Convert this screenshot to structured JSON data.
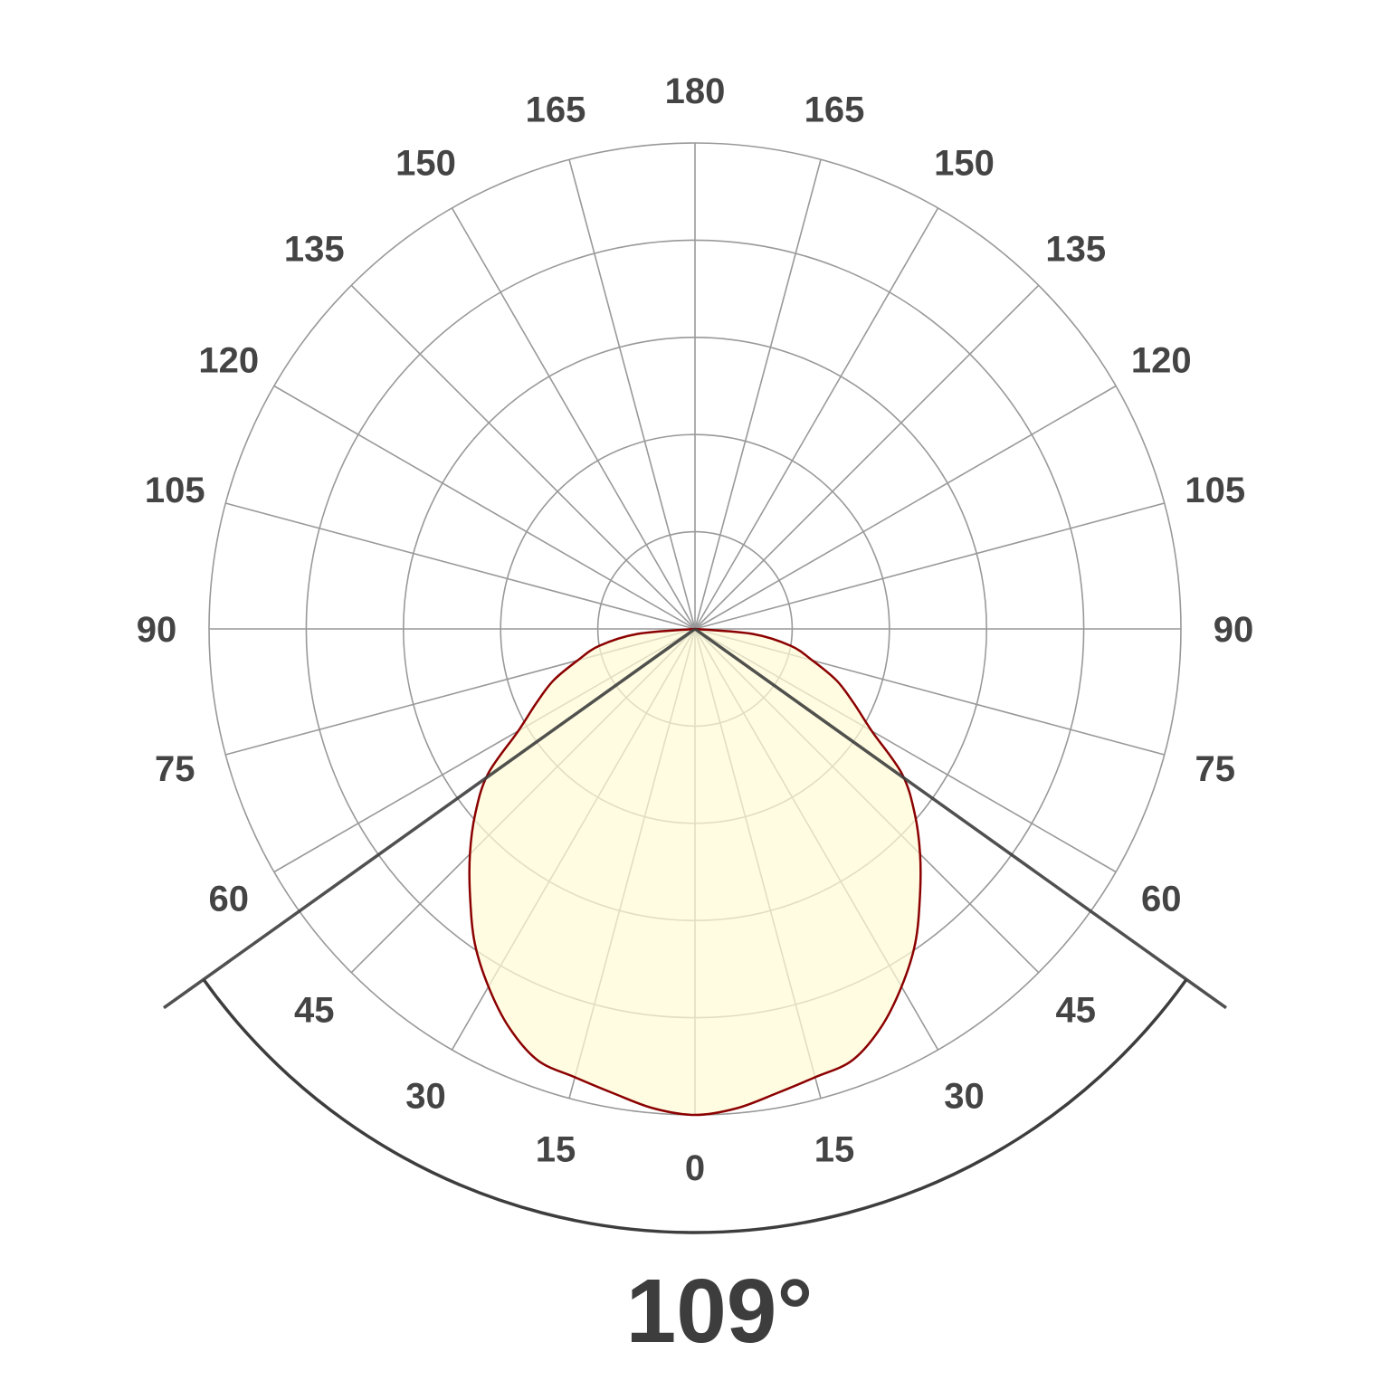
{
  "chart_data": {
    "type": "polar",
    "angle_tick_labels_left": [
      "0",
      "15",
      "30",
      "45",
      "60",
      "75",
      "90",
      "105",
      "120",
      "135",
      "150",
      "165",
      "180"
    ],
    "angle_tick_labels_right": [
      "15",
      "30",
      "45",
      "60",
      "75",
      "90",
      "105",
      "120",
      "135",
      "150",
      "165"
    ],
    "radial_rings": 5,
    "radial_tick_labels": [],
    "grid": true,
    "symmetric": true,
    "series": [
      {
        "angles_deg": [
          0,
          5,
          10,
          15,
          20,
          25,
          30,
          35,
          40,
          45,
          50,
          55,
          60,
          65,
          70,
          75,
          80,
          85,
          90
        ],
        "values_relative": [
          1.0,
          0.99,
          0.97,
          0.955,
          0.945,
          0.905,
          0.85,
          0.79,
          0.72,
          0.655,
          0.59,
          0.52,
          0.42,
          0.36,
          0.31,
          0.25,
          0.2,
          0.12,
          0.0
        ],
        "fill_color": "#fffbd6",
        "line_color": "#8b0000"
      }
    ],
    "beam_angle_deg": 109,
    "beam_angle_label": "109°",
    "colors": {
      "grid": "#999999",
      "beam_lines": "#3d3d3d",
      "labels": "#444444"
    }
  }
}
